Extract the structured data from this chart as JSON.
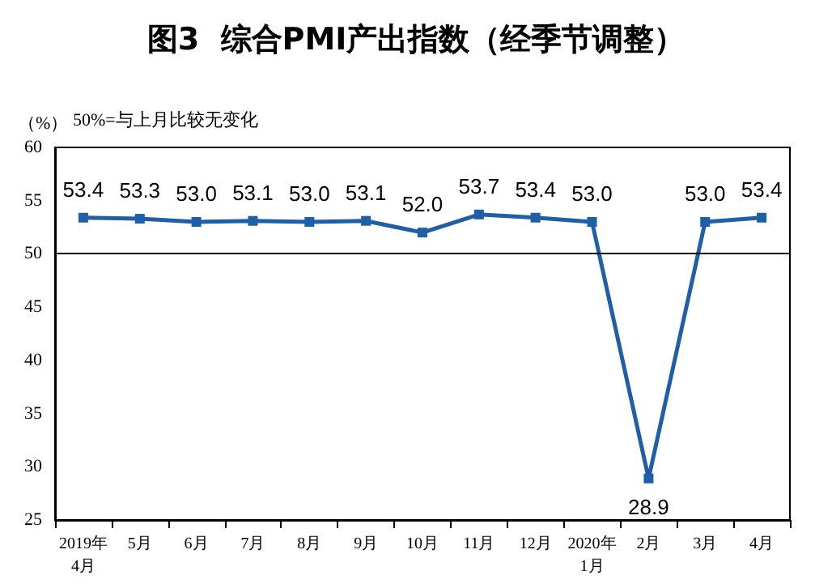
{
  "chart_data": {
    "type": "line",
    "title": "图3  综合PMI产出指数（经季节调整）",
    "ylabel": "（%）",
    "annotations": [
      "50%=与上月比较无变化"
    ],
    "categories": [
      "2019年\n4月",
      "5月",
      "6月",
      "7月",
      "8月",
      "9月",
      "10月",
      "11月",
      "12月",
      "2020年\n1月",
      "2月",
      "3月",
      "4月"
    ],
    "series": [
      {
        "color": "#1f5fa8",
        "values": [
          53.4,
          53.3,
          53.0,
          53.1,
          53.0,
          53.1,
          52.0,
          53.7,
          53.4,
          53.0,
          28.9,
          53.0,
          53.4
        ],
        "value_labels": [
          "53.4",
          "53.3",
          "53.0",
          "53.1",
          "53.0",
          "53.1",
          "52.0",
          "53.7",
          "53.4",
          "53.0",
          "28.9",
          "53.0",
          "53.4"
        ]
      }
    ],
    "ylim": [
      25,
      60
    ],
    "yticks": [
      25,
      30,
      35,
      40,
      45,
      50,
      55,
      60
    ],
    "ref_lines": [
      {
        "axis": "y",
        "value": 50,
        "color": "#000000"
      }
    ],
    "marker": "square",
    "line_style": "solid",
    "grid": false
  }
}
